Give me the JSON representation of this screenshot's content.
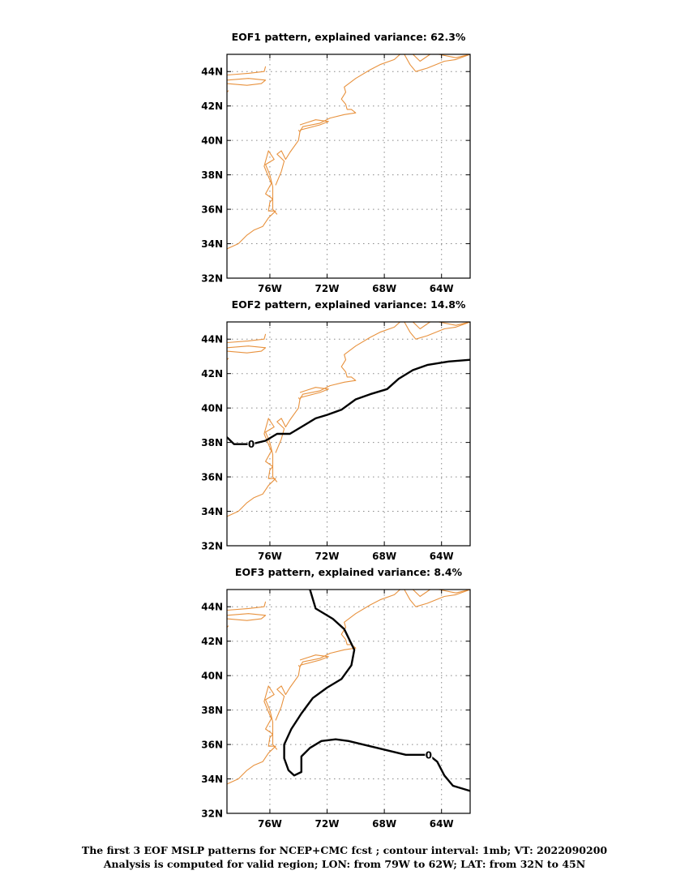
{
  "panels": [
    {
      "title": "EOF1 pattern, explained variance: 62.3%",
      "contour_labels": [],
      "contours": []
    },
    {
      "title": "EOF2 pattern, explained variance: 14.8%",
      "contour_labels": [
        {
          "text": "0",
          "lon": -77.3,
          "lat": 37.9
        }
      ],
      "contours": [
        [
          [
            -79,
            38.3
          ],
          [
            -78.5,
            37.9
          ],
          [
            -77.3,
            37.9
          ],
          [
            -76.3,
            38.1
          ],
          [
            -75.5,
            38.5
          ],
          [
            -74.6,
            38.5
          ],
          [
            -73.8,
            38.9
          ],
          [
            -72.8,
            39.4
          ],
          [
            -72.0,
            39.6
          ],
          [
            -71.0,
            39.9
          ],
          [
            -70.0,
            40.5
          ],
          [
            -69.0,
            40.8
          ],
          [
            -67.8,
            41.1
          ],
          [
            -67.0,
            41.7
          ],
          [
            -66.0,
            42.2
          ],
          [
            -65.0,
            42.5
          ],
          [
            -63.5,
            42.7
          ],
          [
            -62,
            42.8
          ]
        ]
      ]
    },
    {
      "title": "EOF3 pattern, explained variance: 8.4%",
      "contour_labels": [
        {
          "text": "0",
          "lon": -64.9,
          "lat": 35.4
        }
      ],
      "contours": [
        [
          [
            -73.2,
            45
          ],
          [
            -72.8,
            43.9
          ],
          [
            -71.6,
            43.3
          ],
          [
            -70.8,
            42.7
          ],
          [
            -70.1,
            41.5
          ],
          [
            -70.3,
            40.6
          ],
          [
            -71.0,
            39.8
          ],
          [
            -72.0,
            39.3
          ],
          [
            -73.0,
            38.7
          ],
          [
            -73.8,
            37.8
          ],
          [
            -74.5,
            36.9
          ],
          [
            -75.0,
            36.0
          ],
          [
            -75.0,
            35.2
          ],
          [
            -74.7,
            34.5
          ],
          [
            -74.3,
            34.2
          ],
          [
            -73.8,
            34.4
          ],
          [
            -73.8,
            35.3
          ],
          [
            -73.2,
            35.8
          ],
          [
            -72.4,
            36.2
          ],
          [
            -71.4,
            36.3
          ],
          [
            -70.5,
            36.2
          ],
          [
            -69.5,
            36.0
          ],
          [
            -68.5,
            35.8
          ],
          [
            -67.5,
            35.6
          ],
          [
            -66.5,
            35.4
          ],
          [
            -64.9,
            35.4
          ],
          [
            -64.3,
            35.0
          ],
          [
            -63.8,
            34.2
          ],
          [
            -63.2,
            33.6
          ],
          [
            -62,
            33.3
          ]
        ]
      ]
    }
  ],
  "axes": {
    "x_ticks": [
      {
        "label": "76W",
        "lon": -76
      },
      {
        "label": "72W",
        "lon": -72
      },
      {
        "label": "68W",
        "lon": -68
      },
      {
        "label": "64W",
        "lon": -64
      }
    ],
    "y_ticks": [
      {
        "label": "32N",
        "lat": 32
      },
      {
        "label": "34N",
        "lat": 34
      },
      {
        "label": "36N",
        "lat": 36
      },
      {
        "label": "38N",
        "lat": 38
      },
      {
        "label": "40N",
        "lat": 40
      },
      {
        "label": "42N",
        "lat": 42
      },
      {
        "label": "44N",
        "lat": 44
      }
    ],
    "lon_range": [
      -79,
      -62
    ],
    "lat_range": [
      32,
      45
    ]
  },
  "colors": {
    "coastline": "#e8923e",
    "contour": "#000000",
    "grid": "#888888",
    "frame": "#000000"
  },
  "coastline": [
    [
      [
        -79,
        43.8
      ],
      [
        -77.5,
        43.9
      ],
      [
        -76.4,
        44.0
      ],
      [
        -76.3,
        44.3
      ]
    ],
    [
      [
        -79,
        43.3
      ],
      [
        -77.6,
        43.2
      ],
      [
        -76.6,
        43.3
      ],
      [
        -76.3,
        43.5
      ],
      [
        -77.5,
        43.6
      ],
      [
        -79,
        43.5
      ]
    ],
    [
      [
        -79,
        42.8
      ],
      [
        -78.9,
        42.9
      ]
    ],
    [
      [
        -79,
        33.7
      ],
      [
        -78.2,
        34.0
      ],
      [
        -77.6,
        34.5
      ],
      [
        -77.1,
        34.8
      ],
      [
        -76.5,
        35.0
      ],
      [
        -76.1,
        35.5
      ],
      [
        -75.6,
        35.9
      ],
      [
        -76.1,
        35.9
      ],
      [
        -76.0,
        36.4
      ],
      [
        -75.8,
        36.6
      ],
      [
        -76.3,
        36.9
      ],
      [
        -75.9,
        37.5
      ],
      [
        -76.2,
        38.1
      ],
      [
        -76.4,
        38.5
      ],
      [
        -76.1,
        39.4
      ],
      [
        -75.7,
        38.9
      ],
      [
        -76.3,
        38.6
      ],
      [
        -76.0,
        38.0
      ],
      [
        -75.8,
        37.3
      ],
      [
        -75.8,
        36.0
      ],
      [
        -75.5,
        35.7
      ]
    ],
    [
      [
        -75.6,
        37.4
      ],
      [
        -75.2,
        38.2
      ],
      [
        -75.0,
        38.8
      ],
      [
        -75.5,
        39.2
      ],
      [
        -75.2,
        39.4
      ],
      [
        -74.9,
        38.9
      ],
      [
        -74.6,
        39.3
      ],
      [
        -74.0,
        40.0
      ],
      [
        -73.9,
        40.5
      ],
      [
        -73.7,
        40.8
      ],
      [
        -72.5,
        41.0
      ],
      [
        -71.8,
        41.3
      ],
      [
        -70.8,
        41.5
      ],
      [
        -70.0,
        41.6
      ],
      [
        -70.3,
        41.8
      ],
      [
        -70.6,
        41.8
      ],
      [
        -70.7,
        42.1
      ],
      [
        -71.0,
        42.4
      ],
      [
        -70.7,
        42.8
      ],
      [
        -70.8,
        43.1
      ],
      [
        -70.0,
        43.6
      ],
      [
        -69.0,
        44.1
      ],
      [
        -68.3,
        44.4
      ],
      [
        -67.3,
        44.7
      ],
      [
        -66.9,
        45.0
      ]
    ],
    [
      [
        -73.9,
        40.6
      ],
      [
        -72.5,
        40.9
      ],
      [
        -71.9,
        41.1
      ],
      [
        -72.8,
        41.2
      ],
      [
        -73.9,
        40.9
      ]
    ],
    [
      [
        -74.0,
        40.6
      ],
      [
        -73.9,
        40.5
      ]
    ],
    [
      [
        -66.0,
        45
      ],
      [
        -65.5,
        44.6
      ],
      [
        -64.8,
        45.0
      ]
    ],
    [
      [
        -64.2,
        45.0
      ],
      [
        -63.0,
        44.8
      ],
      [
        -62.0,
        45.0
      ]
    ],
    [
      [
        -66.6,
        45.0
      ],
      [
        -66.2,
        44.4
      ],
      [
        -65.8,
        44.0
      ],
      [
        -65.0,
        44.2
      ],
      [
        -63.8,
        44.6
      ],
      [
        -63.0,
        44.7
      ],
      [
        -62.0,
        45.0
      ]
    ]
  ]
}
